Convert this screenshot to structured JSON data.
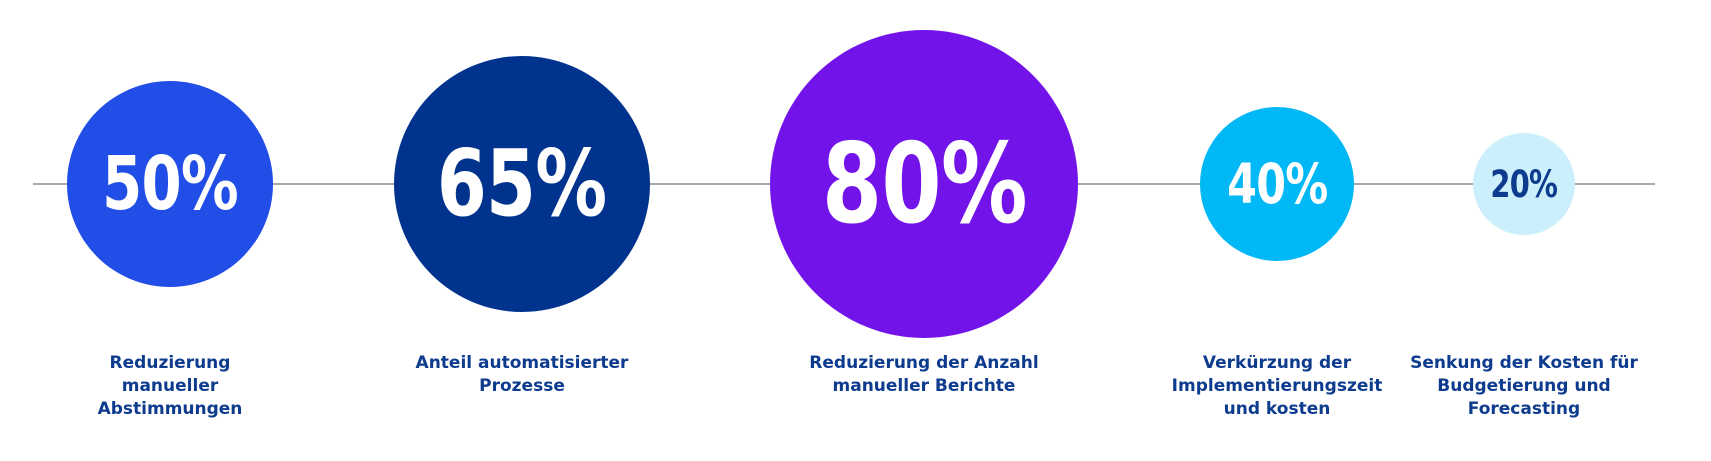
{
  "chart_data": {
    "type": "bubble",
    "title": "",
    "categories": [
      "Reduzierung\nmanueller\nAbstimmungen",
      "Anteil automatisierter\nProzesse",
      "Reduzierung der Anzahl\nmanueller Berichte",
      "Verkürzung der\nImplementierungszeit\nund kosten",
      "Senkung der Kosten für\nBudgetierung und\nForecasting"
    ],
    "values": [
      50,
      65,
      80,
      40,
      20
    ],
    "value_labels": [
      "50%",
      "65%",
      "80%",
      "40%",
      "20%"
    ],
    "unit": "%",
    "colors": [
      "#214ee6",
      "#00338d",
      "#7213ea",
      "#00b8f5",
      "#cbeffb"
    ],
    "text_colors": [
      "#ffffff",
      "#ffffff",
      "#ffffff",
      "#ffffff",
      "#0d3b8e"
    ],
    "grid": false,
    "legend": "none"
  }
}
